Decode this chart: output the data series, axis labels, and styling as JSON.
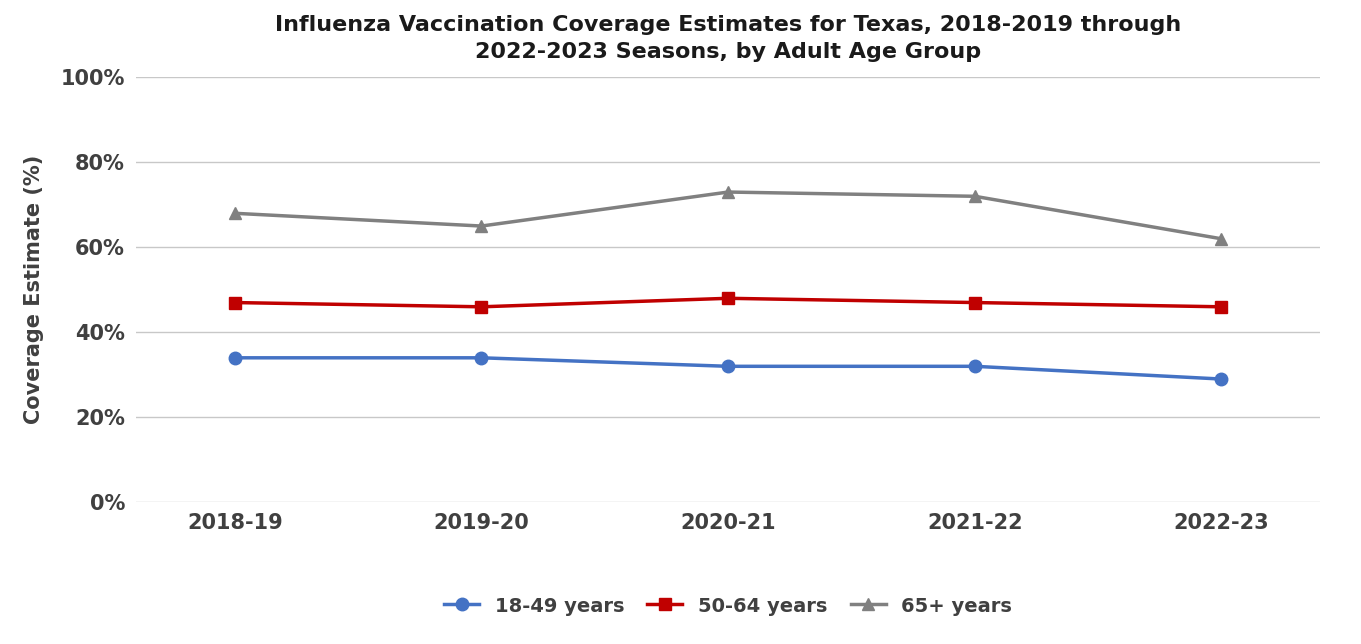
{
  "title": "Influenza Vaccination Coverage Estimates for Texas, 2018-2019 through\n2022-2023 Seasons, by Adult Age Group",
  "ylabel": "Coverage Estimate (%)",
  "seasons": [
    "2018-19",
    "2019-20",
    "2020-21",
    "2021-22",
    "2022-23"
  ],
  "series": [
    {
      "label": "18-49 years",
      "values": [
        34,
        34,
        32,
        32,
        29
      ],
      "color": "#4472C4",
      "marker": "o",
      "linewidth": 2.5
    },
    {
      "label": "50-64 years",
      "values": [
        47,
        46,
        48,
        47,
        46
      ],
      "color": "#C00000",
      "marker": "s",
      "linewidth": 2.5
    },
    {
      "label": "65+ years",
      "values": [
        68,
        65,
        73,
        72,
        62
      ],
      "color": "#808080",
      "marker": "^",
      "linewidth": 2.5
    }
  ],
  "ylim": [
    0,
    100
  ],
  "yticks": [
    0,
    20,
    40,
    60,
    80,
    100
  ],
  "ytick_labels": [
    "0%",
    "20%",
    "40%",
    "60%",
    "80%",
    "100%"
  ],
  "background_color": "#ffffff",
  "grid_color": "#c8c8c8",
  "title_fontsize": 16,
  "axis_label_fontsize": 15,
  "tick_fontsize": 15,
  "legend_fontsize": 14
}
